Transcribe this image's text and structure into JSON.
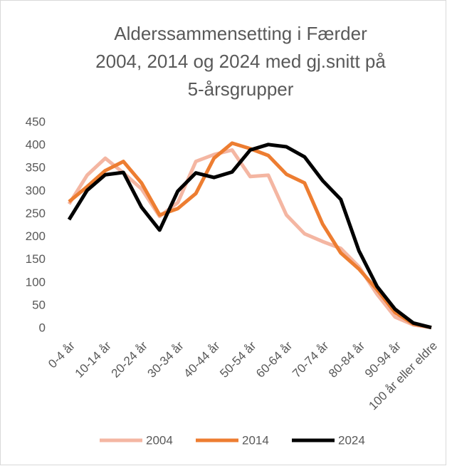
{
  "chart_data": {
    "type": "line",
    "title": [
      "Alderssammensetting i Færder",
      "2004, 2014 og 2024 med gj.snitt på",
      "5-årsgrupper"
    ],
    "categories": [
      "0-4 år",
      null,
      "10-14 år",
      null,
      "20-24 år",
      null,
      "30-34 år",
      null,
      "40-44 år",
      null,
      "50-54 år",
      null,
      "60-64 år",
      null,
      "70-74 år",
      null,
      "80-84 år",
      null,
      "90-94 år",
      null,
      "100 år eller eldre"
    ],
    "series": [
      {
        "name": "2004",
        "color": "#f4b6a2",
        "values": [
          272,
          335,
          372,
          340,
          305,
          245,
          275,
          365,
          380,
          390,
          332,
          335,
          248,
          207,
          190,
          175,
          135,
          75,
          25,
          8,
          2
        ]
      },
      {
        "name": "2014",
        "color": "#ed7d31",
        "values": [
          277,
          310,
          345,
          365,
          318,
          248,
          262,
          295,
          372,
          405,
          393,
          378,
          337,
          318,
          228,
          165,
          130,
          85,
          35,
          10,
          2
        ]
      },
      {
        "name": "2024",
        "color": "#000000",
        "values": [
          238,
          302,
          336,
          341,
          265,
          215,
          300,
          340,
          330,
          342,
          390,
          402,
          397,
          375,
          323,
          282,
          170,
          92,
          42,
          12,
          2
        ]
      }
    ],
    "ylim": [
      0,
      450
    ],
    "yticks": [
      0,
      50,
      100,
      150,
      200,
      250,
      300,
      350,
      400,
      450
    ],
    "legend": "bottom"
  }
}
